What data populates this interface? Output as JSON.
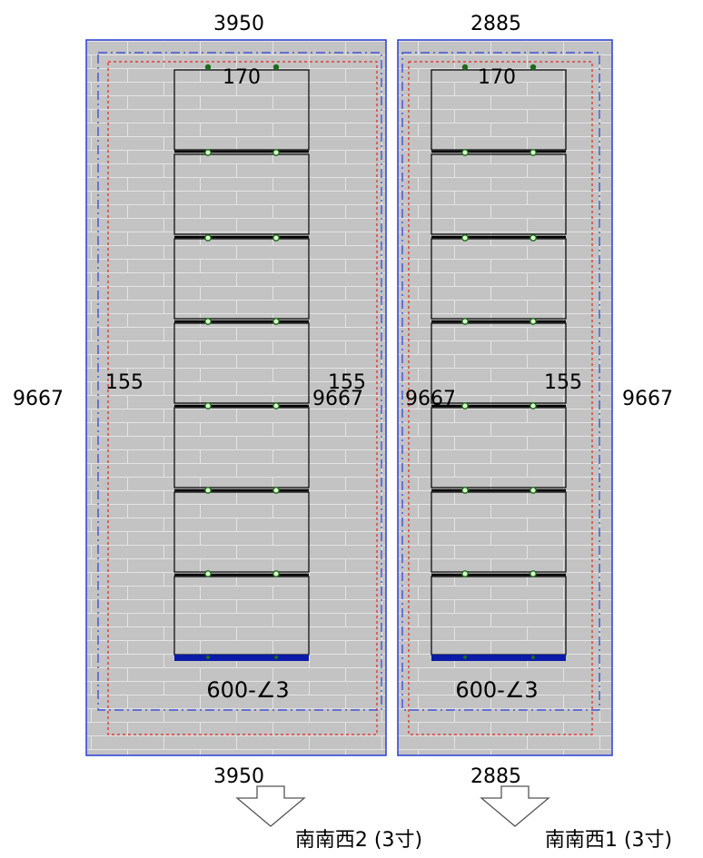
{
  "colors": {
    "roof_fill": "#c3c3c3",
    "tile_line": "#e4e4e4",
    "roof_border": "#2a3fd8",
    "setback_blue": "#2a3fd8",
    "setback_red": "#e0271f",
    "panel_line": "#000000",
    "node_fill": "#d8ffc8",
    "node_stroke": "#1a6b1a",
    "base_bar": "#0b1aa8",
    "arrow_stroke": "#555555"
  },
  "roofs": [
    {
      "id": "roof-left",
      "top_width": "3950",
      "bottom_width": "3950",
      "left_height": "9667",
      "right_height": "9667",
      "left_margin": "155",
      "right_margin": "155",
      "top_spacing": "170",
      "panel_spec": "600-∠3",
      "panel_rows": 7,
      "direction_label": "南南西2 (3寸)",
      "direction_icon": "down-arrow-icon"
    },
    {
      "id": "roof-right",
      "top_width": "2885",
      "bottom_width": "2885",
      "left_height": "9667",
      "right_height": "9667",
      "right_margin": "155",
      "top_spacing": "170",
      "panel_spec": "600-∠3",
      "panel_rows": 7,
      "direction_label": "南南西1 (3寸)",
      "direction_icon": "down-arrow-icon"
    }
  ]
}
